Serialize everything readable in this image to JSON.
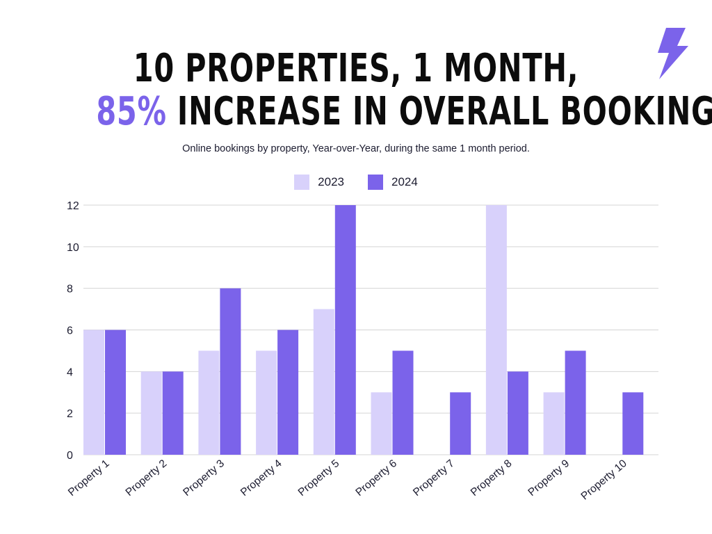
{
  "title": {
    "line1": "10 PROPERTIES, 1 MONTH,",
    "line2_accent": "85%",
    "line2_rest": " INCREASE IN OVERALL BOOKINGS"
  },
  "colors": {
    "accent": "#7b63ea",
    "series_2023": "#d8d1fb",
    "series_2024": "#7b63ea",
    "grid": "#d4d4d4"
  },
  "icon": "lightning-bolt-icon",
  "chart_data": {
    "type": "bar",
    "subtitle": "Online bookings by property, Year-over-Year, during the same 1 month period.",
    "categories": [
      "Property 1",
      "Property 2",
      "Property 3",
      "Property 4",
      "Property 5",
      "Property 6",
      "Property 7",
      "Property 8",
      "Property 9",
      "Property 10"
    ],
    "series": [
      {
        "name": "2023",
        "values": [
          6,
          4,
          5,
          5,
          7,
          3,
          0,
          12,
          3,
          0
        ]
      },
      {
        "name": "2024",
        "values": [
          6,
          4,
          8,
          6,
          12,
          5,
          3,
          4,
          5,
          3
        ]
      }
    ],
    "ylim": [
      0,
      12
    ],
    "yticks": [
      0,
      2,
      4,
      6,
      8,
      10,
      12
    ],
    "xlabel": "",
    "ylabel": "",
    "grid": true,
    "legend": "top-center"
  }
}
